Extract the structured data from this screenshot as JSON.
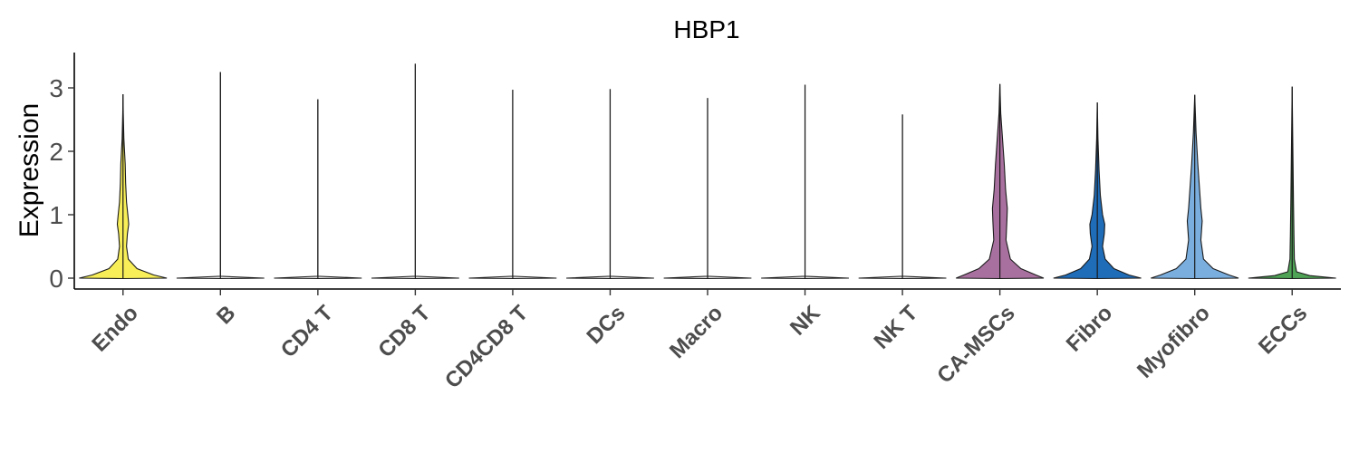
{
  "chart_data": {
    "type": "violin",
    "title": "HBP1",
    "xlabel": "",
    "ylabel": "Expression",
    "ylim": [
      -0.17,
      3.55
    ],
    "yticks": [
      0,
      1,
      2,
      3
    ],
    "grid": false,
    "legend": "none",
    "categories": [
      "Endo",
      "B",
      "CD4 T",
      "CD8 T",
      "CD4CD8 T",
      "DCs",
      "Macro",
      "NK",
      "NK T",
      "CA-MSCs",
      "Fibro",
      "Myofibro",
      "ECCs"
    ],
    "colors": [
      "#F8EF58",
      "#E8E8E8",
      "#E8E8E8",
      "#E8E8E8",
      "#E8E8E8",
      "#E8E8E8",
      "#E8E8E8",
      "#E8E8E8",
      "#E8E8E8",
      "#A8709E",
      "#1F6CB8",
      "#7AAEDE",
      "#4FA356"
    ],
    "max_values": [
      2.9,
      3.25,
      2.82,
      3.38,
      2.97,
      2.98,
      2.84,
      3.05,
      2.58,
      3.06,
      2.77,
      2.89,
      3.02
    ],
    "density_profiles": [
      [
        [
          0,
          1.0
        ],
        [
          0.05,
          0.7
        ],
        [
          0.15,
          0.32
        ],
        [
          0.3,
          0.12
        ],
        [
          0.5,
          0.08
        ],
        [
          0.7,
          0.1
        ],
        [
          0.85,
          0.13
        ],
        [
          1.0,
          0.11
        ],
        [
          1.2,
          0.08
        ],
        [
          1.5,
          0.06
        ],
        [
          1.8,
          0.05
        ],
        [
          2.2,
          0.02
        ],
        [
          2.6,
          0.006
        ],
        [
          2.9,
          0.0
        ]
      ],
      [
        [
          0,
          1.0
        ],
        [
          0.03,
          0.0
        ],
        [
          3.25,
          0.0
        ]
      ],
      [
        [
          0,
          1.0
        ],
        [
          0.03,
          0.0
        ],
        [
          2.82,
          0.0
        ]
      ],
      [
        [
          0,
          1.0
        ],
        [
          0.03,
          0.0
        ],
        [
          3.38,
          0.0
        ]
      ],
      [
        [
          0,
          1.0
        ],
        [
          0.03,
          0.0
        ],
        [
          2.97,
          0.0
        ]
      ],
      [
        [
          0,
          1.0
        ],
        [
          0.03,
          0.0
        ],
        [
          2.98,
          0.0
        ]
      ],
      [
        [
          0,
          1.0
        ],
        [
          0.03,
          0.0
        ],
        [
          2.84,
          0.0
        ]
      ],
      [
        [
          0,
          1.0
        ],
        [
          0.03,
          0.0
        ],
        [
          3.05,
          0.0
        ]
      ],
      [
        [
          0,
          1.0
        ],
        [
          0.03,
          0.0
        ],
        [
          2.58,
          0.0
        ]
      ],
      [
        [
          0,
          1.0
        ],
        [
          0.05,
          0.82
        ],
        [
          0.15,
          0.48
        ],
        [
          0.3,
          0.24
        ],
        [
          0.6,
          0.14
        ],
        [
          0.9,
          0.16
        ],
        [
          1.1,
          0.17
        ],
        [
          1.4,
          0.13
        ],
        [
          1.8,
          0.1
        ],
        [
          2.2,
          0.06
        ],
        [
          2.6,
          0.02
        ],
        [
          3.06,
          0.0
        ]
      ],
      [
        [
          0,
          1.0
        ],
        [
          0.05,
          0.72
        ],
        [
          0.15,
          0.38
        ],
        [
          0.3,
          0.18
        ],
        [
          0.5,
          0.12
        ],
        [
          0.7,
          0.16
        ],
        [
          0.85,
          0.17
        ],
        [
          1.0,
          0.12
        ],
        [
          1.3,
          0.07
        ],
        [
          1.7,
          0.04
        ],
        [
          2.2,
          0.015
        ],
        [
          2.77,
          0.0
        ]
      ],
      [
        [
          0,
          1.0
        ],
        [
          0.05,
          0.78
        ],
        [
          0.15,
          0.42
        ],
        [
          0.3,
          0.2
        ],
        [
          0.6,
          0.14
        ],
        [
          0.9,
          0.17
        ],
        [
          1.1,
          0.14
        ],
        [
          1.4,
          0.11
        ],
        [
          1.8,
          0.07
        ],
        [
          2.3,
          0.03
        ],
        [
          2.89,
          0.0
        ]
      ],
      [
        [
          0,
          1.0
        ],
        [
          0.04,
          0.4
        ],
        [
          0.1,
          0.1
        ],
        [
          0.3,
          0.05
        ],
        [
          0.7,
          0.04
        ],
        [
          1.2,
          0.03
        ],
        [
          1.8,
          0.02
        ],
        [
          2.4,
          0.01
        ],
        [
          3.02,
          0.0
        ]
      ]
    ]
  }
}
